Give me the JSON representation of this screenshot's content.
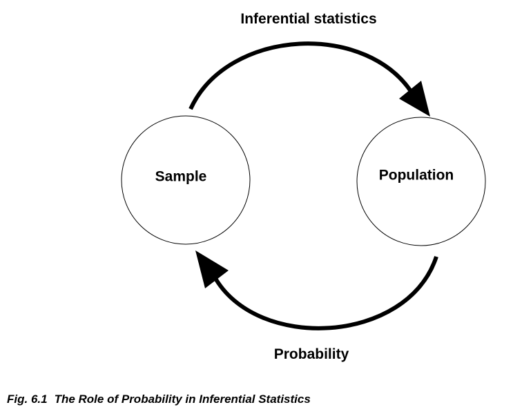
{
  "diagram": {
    "nodes": {
      "sample": {
        "label": "Sample"
      },
      "population": {
        "label": "Population"
      }
    },
    "arrows": {
      "inferential": {
        "label": "Inferential statistics",
        "from": "Sample",
        "to": "Population"
      },
      "probability": {
        "label": "Probability",
        "from": "Population",
        "to": "Sample"
      }
    }
  },
  "caption": {
    "number": "Fig. 6.1",
    "title": "The Role of Probability in Inferential Statistics"
  }
}
